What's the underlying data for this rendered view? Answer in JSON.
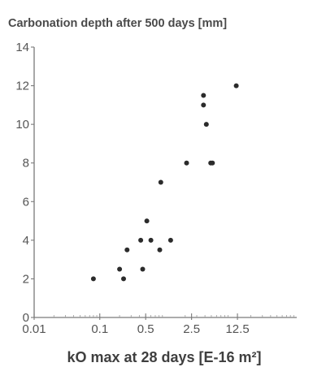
{
  "chart_data": {
    "type": "scatter",
    "title": "Carbonation depth after 500 days [mm]",
    "xlabel": "kO max at 28 days [E-16 m²]",
    "ylabel": "",
    "x_scale": "log",
    "x_ticks": [
      "0.01",
      "0.1",
      "0.5",
      "2.5",
      "12.5"
    ],
    "y_ticks": [
      "0",
      "2",
      "4",
      "6",
      "8",
      "10",
      "12",
      "14"
    ],
    "xlim": [
      0.01,
      100
    ],
    "ylim": [
      0,
      14
    ],
    "grid": false,
    "point_color": "#2b2b2b",
    "points": [
      {
        "x": 0.08,
        "y": 2
      },
      {
        "x": 0.2,
        "y": 2.5
      },
      {
        "x": 0.23,
        "y": 2
      },
      {
        "x": 0.26,
        "y": 3.5
      },
      {
        "x": 0.42,
        "y": 4
      },
      {
        "x": 0.45,
        "y": 2.5
      },
      {
        "x": 0.52,
        "y": 5
      },
      {
        "x": 0.6,
        "y": 4
      },
      {
        "x": 0.82,
        "y": 3.5
      },
      {
        "x": 0.85,
        "y": 7
      },
      {
        "x": 1.2,
        "y": 4
      },
      {
        "x": 2.1,
        "y": 8
      },
      {
        "x": 3.8,
        "y": 11.5
      },
      {
        "x": 3.8,
        "y": 11
      },
      {
        "x": 4.2,
        "y": 10
      },
      {
        "x": 4.9,
        "y": 8
      },
      {
        "x": 5.2,
        "y": 8
      },
      {
        "x": 12,
        "y": 12
      }
    ]
  }
}
